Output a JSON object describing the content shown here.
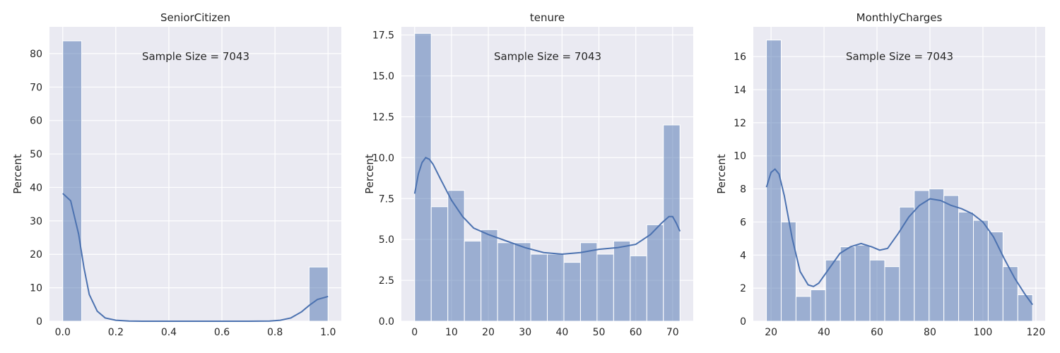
{
  "figure": {
    "panel_colors": {
      "background": "#eaeaf2",
      "grid": "#ffffff",
      "bars": "#4c72b0",
      "kde": "#4c72b0"
    }
  },
  "chart_data": [
    {
      "type": "bar",
      "subtype": "histogram-with-kde",
      "title": "SeniorCitizen",
      "xlabel": "",
      "ylabel": "Percent",
      "annotation": "Sample Size = 7043",
      "xlim": [
        -0.05,
        1.05
      ],
      "ylim": [
        0,
        88
      ],
      "xticks": [
        0.0,
        0.2,
        0.4,
        0.6,
        0.8,
        1.0
      ],
      "xtick_labels": [
        "0.0",
        "0.2",
        "0.4",
        "0.6",
        "0.8",
        "1.0"
      ],
      "yticks": [
        0,
        10,
        20,
        30,
        40,
        50,
        60,
        70,
        80
      ],
      "ytick_labels": [
        "0",
        "10",
        "20",
        "30",
        "40",
        "50",
        "60",
        "70",
        "80"
      ],
      "grid": true,
      "bins": [
        {
          "x0": 0.0,
          "x1": 0.0714,
          "value": 83.8
        },
        {
          "x0": 0.9286,
          "x1": 1.0,
          "value": 16.2
        }
      ],
      "kde": [
        [
          0.0,
          38.2
        ],
        [
          0.03,
          36.0
        ],
        [
          0.06,
          26.0
        ],
        [
          0.08,
          16.0
        ],
        [
          0.1,
          8.0
        ],
        [
          0.13,
          3.0
        ],
        [
          0.16,
          1.0
        ],
        [
          0.2,
          0.3
        ],
        [
          0.25,
          0.05
        ],
        [
          0.3,
          0.0
        ],
        [
          0.5,
          0.0
        ],
        [
          0.7,
          0.0
        ],
        [
          0.78,
          0.05
        ],
        [
          0.82,
          0.3
        ],
        [
          0.86,
          1.0
        ],
        [
          0.9,
          2.8
        ],
        [
          0.93,
          4.8
        ],
        [
          0.96,
          6.5
        ],
        [
          1.0,
          7.4
        ]
      ]
    },
    {
      "type": "bar",
      "subtype": "histogram-with-kde",
      "title": "tenure",
      "xlabel": "",
      "ylabel": "Percent",
      "annotation": "Sample Size = 7043",
      "xlim": [
        -3.6,
        75.6
      ],
      "ylim": [
        0,
        18.0
      ],
      "xticks": [
        0,
        10,
        20,
        30,
        40,
        50,
        60,
        70
      ],
      "xtick_labels": [
        "0",
        "10",
        "20",
        "30",
        "40",
        "50",
        "60",
        "70"
      ],
      "yticks": [
        0,
        2.5,
        5.0,
        7.5,
        10.0,
        12.5,
        15.0,
        17.5
      ],
      "ytick_labels": [
        "0.0",
        "2.5",
        "5.0",
        "7.5",
        "10.0",
        "12.5",
        "15.0",
        "17.5"
      ],
      "grid": true,
      "bins": [
        {
          "x0": 0.0,
          "x1": 4.5,
          "value": 17.6
        },
        {
          "x0": 4.5,
          "x1": 9.0,
          "value": 7.0
        },
        {
          "x0": 9.0,
          "x1": 13.5,
          "value": 8.0
        },
        {
          "x0": 13.5,
          "x1": 18.0,
          "value": 4.9
        },
        {
          "x0": 18.0,
          "x1": 22.5,
          "value": 5.6
        },
        {
          "x0": 22.5,
          "x1": 27.0,
          "value": 4.8
        },
        {
          "x0": 27.0,
          "x1": 31.5,
          "value": 4.8
        },
        {
          "x0": 31.5,
          "x1": 36.0,
          "value": 4.1
        },
        {
          "x0": 36.0,
          "x1": 40.5,
          "value": 4.1
        },
        {
          "x0": 40.5,
          "x1": 45.0,
          "value": 3.6
        },
        {
          "x0": 45.0,
          "x1": 49.5,
          "value": 4.8
        },
        {
          "x0": 49.5,
          "x1": 54.0,
          "value": 4.1
        },
        {
          "x0": 54.0,
          "x1": 58.5,
          "value": 4.9
        },
        {
          "x0": 58.5,
          "x1": 63.0,
          "value": 4.0
        },
        {
          "x0": 63.0,
          "x1": 67.5,
          "value": 5.9
        },
        {
          "x0": 67.5,
          "x1": 72.0,
          "value": 12.0
        }
      ],
      "kde": [
        [
          0,
          7.8
        ],
        [
          1,
          9.0
        ],
        [
          2,
          9.7
        ],
        [
          3,
          10.0
        ],
        [
          4,
          9.9
        ],
        [
          5,
          9.6
        ],
        [
          7,
          8.7
        ],
        [
          10,
          7.4
        ],
        [
          13,
          6.4
        ],
        [
          16,
          5.7
        ],
        [
          20,
          5.3
        ],
        [
          25,
          4.9
        ],
        [
          30,
          4.5
        ],
        [
          35,
          4.2
        ],
        [
          40,
          4.1
        ],
        [
          45,
          4.2
        ],
        [
          50,
          4.4
        ],
        [
          55,
          4.5
        ],
        [
          60,
          4.7
        ],
        [
          64,
          5.3
        ],
        [
          67,
          6.0
        ],
        [
          69,
          6.4
        ],
        [
          70,
          6.4
        ],
        [
          71,
          6.0
        ],
        [
          72,
          5.5
        ]
      ]
    },
    {
      "type": "bar",
      "subtype": "histogram-with-kde",
      "title": "MonthlyCharges",
      "xlabel": "",
      "ylabel": "Percent",
      "annotation": "Sample Size = 7043",
      "xlim": [
        13.3,
        123.5
      ],
      "ylim": [
        0,
        17.8
      ],
      "xticks": [
        20,
        40,
        60,
        80,
        100,
        120
      ],
      "xtick_labels": [
        "20",
        "40",
        "60",
        "80",
        "100",
        "120"
      ],
      "yticks": [
        0,
        2,
        4,
        6,
        8,
        10,
        12,
        14,
        16
      ],
      "ytick_labels": [
        "0",
        "2",
        "4",
        "6",
        "8",
        "10",
        "12",
        "14",
        "16"
      ],
      "grid": true,
      "bins": [
        {
          "x0": 18.25,
          "x1": 23.83,
          "value": 17.0
        },
        {
          "x0": 23.83,
          "x1": 29.42,
          "value": 6.0
        },
        {
          "x0": 29.42,
          "x1": 35.0,
          "value": 1.5
        },
        {
          "x0": 35.0,
          "x1": 40.58,
          "value": 1.9
        },
        {
          "x0": 40.58,
          "x1": 46.17,
          "value": 3.7
        },
        {
          "x0": 46.17,
          "x1": 51.75,
          "value": 4.5
        },
        {
          "x0": 51.75,
          "x1": 57.33,
          "value": 4.6
        },
        {
          "x0": 57.33,
          "x1": 62.92,
          "value": 3.7
        },
        {
          "x0": 62.92,
          "x1": 68.5,
          "value": 3.3
        },
        {
          "x0": 68.5,
          "x1": 74.08,
          "value": 6.9
        },
        {
          "x0": 74.08,
          "x1": 79.67,
          "value": 7.9
        },
        {
          "x0": 79.67,
          "x1": 85.25,
          "value": 8.0
        },
        {
          "x0": 85.25,
          "x1": 90.83,
          "value": 7.6
        },
        {
          "x0": 90.83,
          "x1": 96.42,
          "value": 6.6
        },
        {
          "x0": 96.42,
          "x1": 102.0,
          "value": 6.1
        },
        {
          "x0": 102.0,
          "x1": 107.58,
          "value": 5.4
        },
        {
          "x0": 107.58,
          "x1": 113.17,
          "value": 3.3
        },
        {
          "x0": 113.17,
          "x1": 118.75,
          "value": 1.6
        }
      ],
      "kde": [
        [
          18.25,
          8.1
        ],
        [
          20,
          9.0
        ],
        [
          21.5,
          9.2
        ],
        [
          23,
          8.9
        ],
        [
          25,
          7.6
        ],
        [
          28,
          5.0
        ],
        [
          31,
          3.0
        ],
        [
          34,
          2.2
        ],
        [
          36,
          2.1
        ],
        [
          38,
          2.3
        ],
        [
          42,
          3.2
        ],
        [
          46,
          4.1
        ],
        [
          50,
          4.5
        ],
        [
          54,
          4.7
        ],
        [
          58,
          4.5
        ],
        [
          61,
          4.3
        ],
        [
          64,
          4.4
        ],
        [
          68,
          5.3
        ],
        [
          72,
          6.3
        ],
        [
          76,
          7.0
        ],
        [
          80,
          7.4
        ],
        [
          84,
          7.3
        ],
        [
          88,
          7.0
        ],
        [
          92,
          6.8
        ],
        [
          96,
          6.5
        ],
        [
          100,
          6.0
        ],
        [
          104,
          5.1
        ],
        [
          108,
          3.8
        ],
        [
          112,
          2.6
        ],
        [
          116,
          1.6
        ],
        [
          118.75,
          1.0
        ]
      ]
    }
  ]
}
